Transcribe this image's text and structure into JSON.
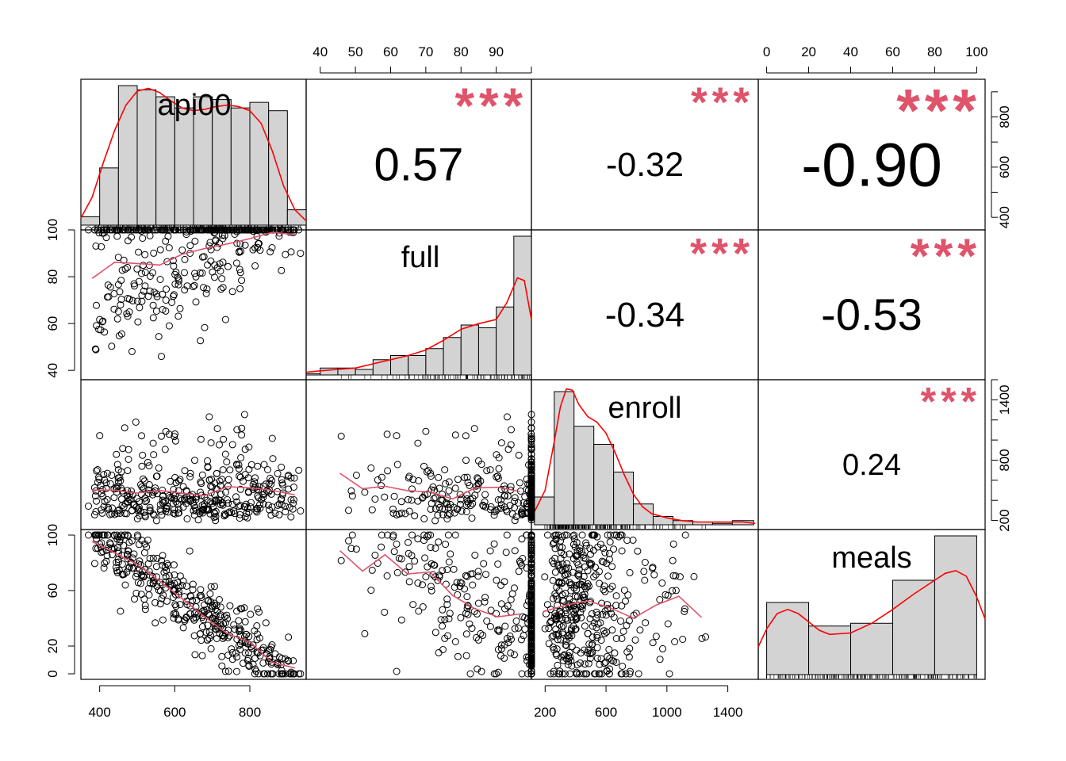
{
  "chart_data": {
    "type": "scatter_matrix",
    "variables": [
      "api00",
      "full",
      "enroll",
      "meals"
    ],
    "axes": {
      "api00": {
        "range": [
          350,
          950
        ],
        "ticks": [
          400,
          600,
          800
        ],
        "tick_labels": [
          "400",
          "600",
          "800"
        ]
      },
      "full": {
        "range": [
          36,
          100
        ],
        "ticks": [
          40,
          50,
          60,
          70,
          80,
          90,
          100
        ],
        "top_tick_labels": [
          "40",
          "50",
          "60",
          "70",
          "80",
          "90"
        ],
        "left_tick_labels": [
          "40",
          "60",
          "80",
          "100"
        ],
        "left_ticks": [
          40,
          60,
          80,
          100
        ]
      },
      "enroll": {
        "range": [
          110,
          1600
        ],
        "ticks": [
          200,
          600,
          1000,
          1400
        ],
        "tick_labels": [
          "200",
          "600",
          "1000",
          "1400"
        ]
      },
      "meals": {
        "range": [
          -4,
          104
        ],
        "ticks": [
          0,
          20,
          40,
          60,
          80,
          100
        ],
        "tick_labels": [
          "0",
          "20",
          "40",
          "60",
          "80",
          "100"
        ],
        "left_tick_labels": [
          "0",
          "20",
          "60",
          "100"
        ],
        "left_ticks": [
          0,
          20,
          60,
          100
        ]
      }
    },
    "right_axes": {
      "api00": {
        "ticks": [
          400,
          500,
          600,
          700,
          800,
          900
        ],
        "tick_labels": [
          "400",
          "",
          "600",
          "",
          "800",
          ""
        ]
      },
      "enroll": {
        "ticks": [
          200,
          400,
          600,
          800,
          1000,
          1200,
          1400,
          1600
        ],
        "tick_labels": [
          "200",
          "",
          "",
          "800",
          "",
          "",
          "1400",
          ""
        ]
      }
    },
    "correlations": [
      {
        "pair": [
          "api00",
          "full"
        ],
        "r": "0.57",
        "stars": "***"
      },
      {
        "pair": [
          "api00",
          "enroll"
        ],
        "r": "-0.32",
        "stars": "***"
      },
      {
        "pair": [
          "api00",
          "meals"
        ],
        "r": "-0.90",
        "stars": "***"
      },
      {
        "pair": [
          "full",
          "enroll"
        ],
        "r": "-0.34",
        "stars": "***"
      },
      {
        "pair": [
          "full",
          "meals"
        ],
        "r": "-0.53",
        "stars": "***"
      },
      {
        "pair": [
          "enroll",
          "meals"
        ],
        "r": "0.24",
        "stars": "***"
      }
    ],
    "histograms": {
      "api00": {
        "breaks": [
          350,
          400,
          450,
          500,
          550,
          600,
          650,
          700,
          750,
          800,
          850,
          900,
          950
        ],
        "density": [
          0.06,
          0.41,
          1.0,
          0.97,
          0.92,
          0.84,
          0.92,
          0.9,
          0.84,
          0.88,
          0.82,
          0.11
        ]
      },
      "full": {
        "breaks": [
          36,
          40,
          45,
          50,
          55,
          60,
          65,
          70,
          75,
          80,
          85,
          90,
          95,
          100
        ],
        "density": [
          0.01,
          0.05,
          0.05,
          0.04,
          0.11,
          0.14,
          0.14,
          0.19,
          0.27,
          0.36,
          0.34,
          0.49,
          1.0
        ]
      },
      "enroll": {
        "breaks": [
          130,
          260,
          390,
          520,
          650,
          780,
          910,
          1040,
          1170,
          1300,
          1430,
          1570
        ],
        "density": [
          0.2,
          0.96,
          0.71,
          0.58,
          0.38,
          0.15,
          0.06,
          0.03,
          0.02,
          0.01,
          0.03
        ]
      },
      "meals": {
        "breaks": [
          0,
          20,
          40,
          60,
          80,
          100
        ],
        "density": [
          0.52,
          0.35,
          0.37,
          0.68,
          1.0
        ]
      }
    },
    "density_curves": {
      "api00": {
        "x": [
          350,
          380,
          410,
          440,
          470,
          500,
          530,
          560,
          590,
          620,
          650,
          680,
          710,
          740,
          770,
          800,
          830,
          860,
          890,
          920,
          950
        ],
        "y": [
          0.05,
          0.2,
          0.45,
          0.68,
          0.86,
          0.96,
          0.98,
          0.95,
          0.89,
          0.84,
          0.82,
          0.83,
          0.85,
          0.86,
          0.85,
          0.82,
          0.73,
          0.53,
          0.28,
          0.11,
          0.03
        ]
      },
      "full": {
        "x": [
          36,
          40,
          45,
          50,
          55,
          60,
          65,
          70,
          75,
          80,
          85,
          90,
          93,
          96,
          98,
          100
        ],
        "y": [
          0.02,
          0.03,
          0.04,
          0.05,
          0.08,
          0.11,
          0.14,
          0.18,
          0.25,
          0.33,
          0.37,
          0.4,
          0.52,
          0.7,
          0.68,
          0.4
        ]
      },
      "enroll": {
        "x": [
          110,
          200,
          260,
          300,
          340,
          380,
          420,
          480,
          540,
          600,
          660,
          720,
          780,
          840,
          900,
          1000,
          1100,
          1200,
          1300,
          1400,
          1500,
          1580
        ],
        "y": [
          0.05,
          0.25,
          0.6,
          0.85,
          0.98,
          0.97,
          0.87,
          0.78,
          0.74,
          0.66,
          0.52,
          0.36,
          0.22,
          0.13,
          0.08,
          0.05,
          0.03,
          0.02,
          0.02,
          0.02,
          0.02,
          0.01
        ]
      },
      "meals": {
        "x": [
          -4,
          0,
          5,
          10,
          15,
          20,
          25,
          30,
          40,
          50,
          60,
          70,
          80,
          85,
          90,
          95,
          100,
          104
        ],
        "y": [
          0.2,
          0.33,
          0.44,
          0.47,
          0.44,
          0.38,
          0.32,
          0.29,
          0.3,
          0.37,
          0.47,
          0.58,
          0.68,
          0.73,
          0.75,
          0.71,
          0.56,
          0.4
        ]
      }
    },
    "n_points": 400
  },
  "colors": {
    "frame": "#000000",
    "histogram_fill": "#d3d3d3",
    "density_line": "#ff0000",
    "smooth_line": "#df536b",
    "stars": "#df536b",
    "points": "#000000"
  }
}
